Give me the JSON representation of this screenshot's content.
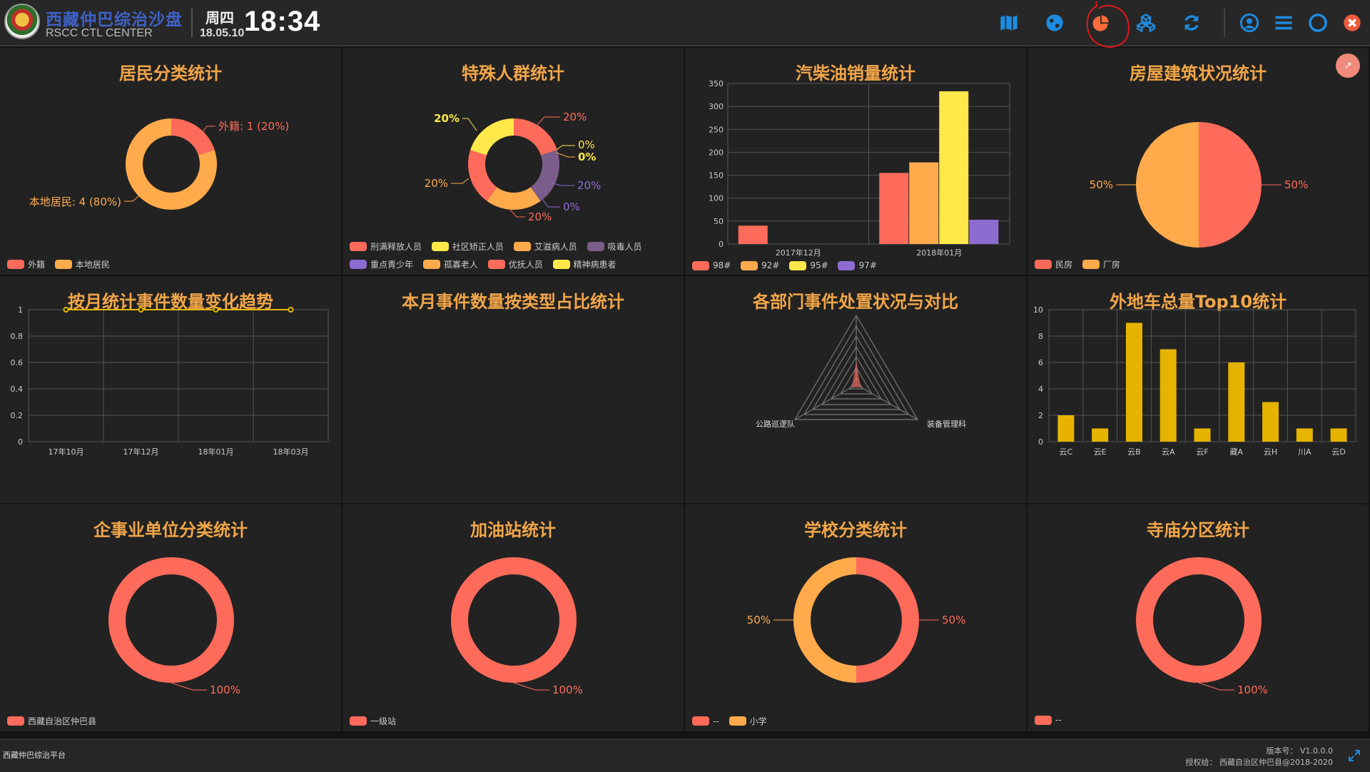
{
  "header": {
    "title": "西藏仲巴综治沙盘",
    "subtitle": "RSCC CTL CENTER",
    "weekday": "周四",
    "date": "18.05.10",
    "time": "18:34",
    "icons": [
      "map-icon",
      "globe-icon",
      "pie-chart-icon",
      "cubes-icon",
      "refresh-icon",
      "user-icon",
      "menu-icon",
      "circle-icon",
      "close-icon"
    ],
    "active_icon": "pie-chart-icon",
    "accent": "#1d8be0"
  },
  "panels": {
    "resident": {
      "title": "居民分类统计",
      "legend": [
        "外籍",
        "本地居民"
      ],
      "labels": [
        "外籍: 1 (20%)",
        "本地居民: 4 (80%)"
      ]
    },
    "special": {
      "title": "特殊人群统计",
      "legend": [
        "刑满释放人员",
        "社区矫正人员",
        "艾滋病人员",
        "吸毒人员",
        "重点青少年",
        "孤寡老人",
        "优抚人员",
        "精神病患者"
      ],
      "labels": [
        "20%",
        "0%",
        "0%",
        "20%",
        "0%",
        "20%",
        "20%",
        "20%"
      ]
    },
    "fuel": {
      "title": "汽柴油销量统计",
      "legend": [
        "98#",
        "92#",
        "95#",
        "97#"
      ]
    },
    "housing": {
      "title": "房屋建筑状况统计",
      "legend": [
        "民房",
        "厂房"
      ],
      "labels": [
        "50%",
        "50%"
      ]
    },
    "trend": {
      "title": "按月统计事件数量变化趋势"
    },
    "event_type": {
      "title": "本月事件数量按类型占比统计"
    },
    "dept": {
      "title": "各部门事件处置状况与对比",
      "axes": [
        "公路巡逻队",
        "装备管理科"
      ]
    },
    "cars": {
      "title": "外地车总量Top10统计"
    },
    "enterprise": {
      "title": "企事业单位分类统计",
      "legend": [
        "西藏自治区仲巴县"
      ],
      "labels": [
        "100%"
      ]
    },
    "gas_station": {
      "title": "加油站统计",
      "legend": [
        "一级站"
      ],
      "labels": [
        "100%"
      ]
    },
    "school": {
      "title": "学校分类统计",
      "legend": [
        "--",
        "小学"
      ],
      "labels": [
        "50%",
        "50%"
      ]
    },
    "temple": {
      "title": "寺庙分区统计",
      "legend": [
        "--"
      ],
      "labels": [
        "100%"
      ]
    }
  },
  "chart_data": [
    {
      "type": "pie",
      "title": "居民分类统计",
      "categories": [
        "外籍",
        "本地居民"
      ],
      "values": [
        1,
        4
      ],
      "colors": [
        "#ff6b5b",
        "#ffab4c"
      ]
    },
    {
      "type": "pie",
      "title": "特殊人群统计",
      "categories": [
        "刑满释放人员",
        "社区矫正人员",
        "艾滋病人员",
        "吸毒人员",
        "重点青少年",
        "孤寡老人",
        "优抚人员",
        "精神病患者"
      ],
      "values": [
        20,
        0,
        0,
        20,
        0,
        20,
        20,
        20
      ],
      "colors": [
        "#ff6b5b",
        "#ffe84a",
        "#ffab4c",
        "#7a5d8a",
        "#8e6bd1",
        "#ffab4c",
        "#ff6b5b",
        "#ffe84a"
      ]
    },
    {
      "type": "bar",
      "title": "汽柴油销量统计",
      "categories": [
        "2017年12月",
        "2018年01月"
      ],
      "series": [
        {
          "name": "98#",
          "values": [
            40,
            155
          ],
          "color": "#ff6b5b"
        },
        {
          "name": "92#",
          "values": [
            0,
            178
          ],
          "color": "#ffab4c"
        },
        {
          "name": "95#",
          "values": [
            0,
            333
          ],
          "color": "#ffe84a"
        },
        {
          "name": "97#",
          "values": [
            0,
            53
          ],
          "color": "#8e6bd1"
        }
      ],
      "ylim": [
        0,
        350
      ],
      "yticks": [
        0,
        50,
        100,
        150,
        200,
        250,
        300,
        350
      ]
    },
    {
      "type": "pie",
      "title": "房屋建筑状况统计",
      "categories": [
        "民房",
        "厂房"
      ],
      "values": [
        50,
        50
      ],
      "colors": [
        "#ff6b5b",
        "#ffab4c"
      ]
    },
    {
      "type": "line",
      "title": "按月统计事件数量变化趋势",
      "x": [
        "17年10月",
        "17年12月",
        "18年01月",
        "18年03月"
      ],
      "values": [
        1,
        1,
        1,
        1
      ],
      "ylim": [
        0,
        1
      ],
      "yticks": [
        "0",
        "0.2",
        "0.4",
        "0.6",
        "0.8",
        "1"
      ],
      "color": "#e6b800"
    },
    {
      "type": "bar",
      "title": "外地车总量Top10统计",
      "categories": [
        "云C",
        "云E",
        "云B",
        "云A",
        "云F",
        "藏A",
        "云H",
        "川A",
        "云D"
      ],
      "values": [
        2,
        1,
        9,
        7,
        1,
        6,
        3,
        1,
        1
      ],
      "ylim": [
        0,
        10
      ],
      "yticks": [
        0,
        2,
        4,
        6,
        8,
        10
      ],
      "color": "#e6b400"
    },
    {
      "type": "pie",
      "title": "企事业单位分类统计",
      "categories": [
        "西藏自治区仲巴县"
      ],
      "values": [
        100
      ],
      "colors": [
        "#ff6b5b"
      ]
    },
    {
      "type": "pie",
      "title": "加油站统计",
      "categories": [
        "一级站"
      ],
      "values": [
        100
      ],
      "colors": [
        "#ff6b5b"
      ]
    },
    {
      "type": "pie",
      "title": "学校分类统计",
      "categories": [
        "--",
        "小学"
      ],
      "values": [
        50,
        50
      ],
      "colors": [
        "#ff6b5b",
        "#ffab4c"
      ]
    },
    {
      "type": "pie",
      "title": "寺庙分区统计",
      "categories": [
        "--"
      ],
      "values": [
        100
      ],
      "colors": [
        "#ff6b5b"
      ]
    }
  ],
  "footer": {
    "left": "西藏仲巴综治平台",
    "version": "版本号：  V1.0.0.0",
    "copyright": "授权给：  西藏自治区仲巴县@2018-2020"
  }
}
